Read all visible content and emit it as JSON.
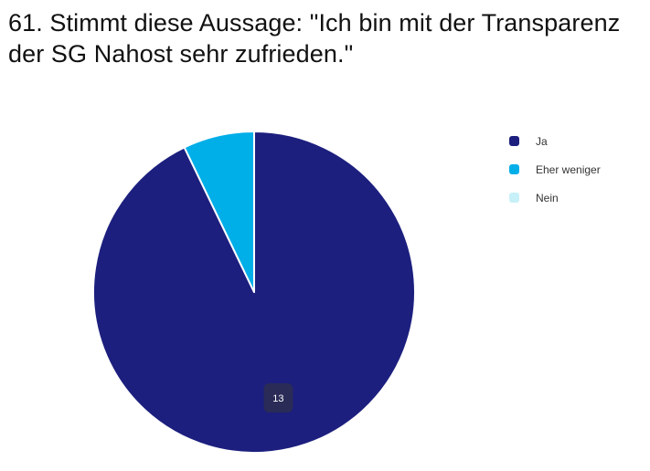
{
  "chart_data": {
    "type": "pie",
    "title": "61. Stimmt diese Aussage: \"Ich bin mit der Transparenz der SG Nahost sehr zufrieden.\"",
    "categories": [
      "Ja",
      "Eher weniger",
      "Nein"
    ],
    "values": [
      13,
      1,
      0
    ],
    "colors": [
      "#1c1f7e",
      "#00aee8",
      "#c8f0f8"
    ],
    "data_labels": [
      "13",
      "",
      ""
    ],
    "legend_position": "top-right"
  }
}
